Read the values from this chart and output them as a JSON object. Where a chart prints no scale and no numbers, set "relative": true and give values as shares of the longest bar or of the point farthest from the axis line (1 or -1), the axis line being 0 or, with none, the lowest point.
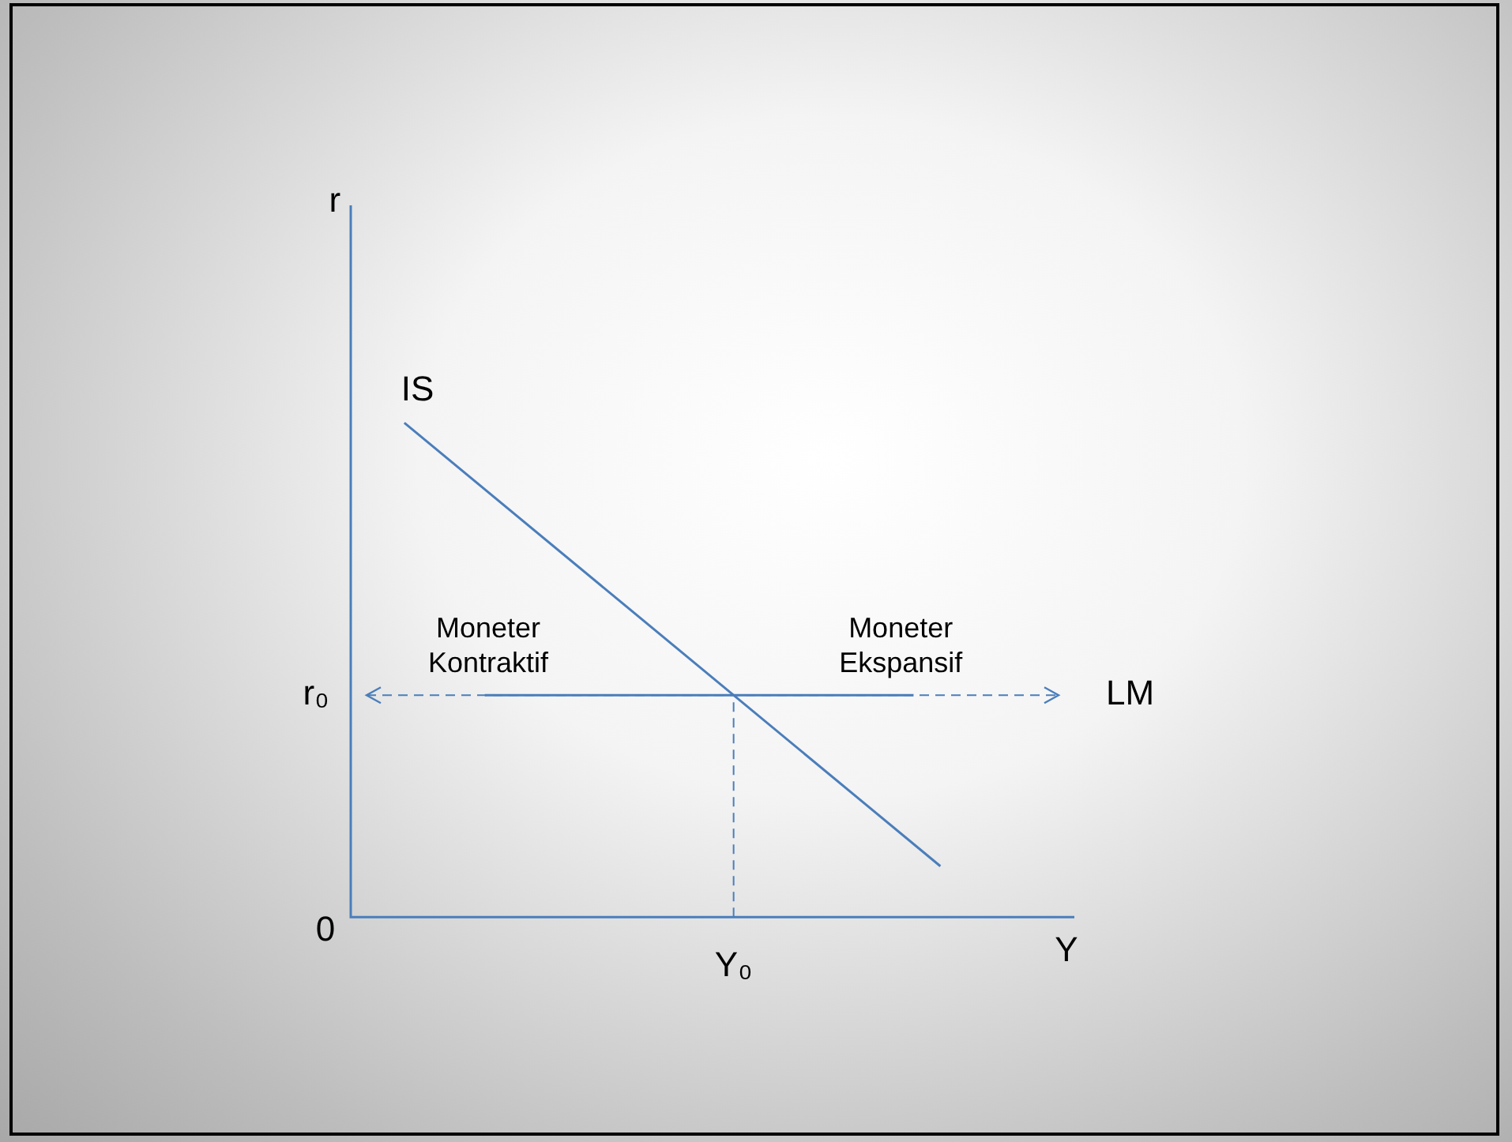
{
  "chart_data": {
    "type": "line",
    "relative": true,
    "xlabel": "Y",
    "categories": [
      null,
      null,
      null,
      null,
      null,
      null,
      null,
      null,
      null,
      null,
      null,
      null,
      null,
      null,
      null,
      null,
      null,
      null,
      null,
      null,
      null,
      null,
      null,
      null,
      null,
      null,
      null,
      null
    ],
    "series": [
      {
        "name": "IS",
        "color": "#4a7ebb",
        "values": [
          null,
          null,
          1,
          null,
          null,
          null,
          null,
          null,
          null,
          null,
          null,
          null,
          null,
          null,
          null,
          null,
          null,
          null,
          null,
          null,
          null,
          null,
          0.103,
          null,
          null,
          null,
          null,
          null
        ]
      },
      {
        "name": "LM",
        "color": "#4a7ebb",
        "values": [
          null,
          null,
          null,
          null,
          null,
          0.449,
          null,
          null,
          null,
          null,
          null,
          null,
          null,
          null,
          null,
          null,
          null,
          null,
          null,
          null,
          null,
          0.449,
          null,
          null,
          null,
          null,
          null,
          null
        ]
      }
    ],
    "ref_lines": [
      {
        "axis": "y",
        "value": 0.449,
        "label": "r₀",
        "color": "#4a7ebb",
        "line_style": "dashed"
      }
    ],
    "annotations": [
      "r",
      "0",
      "Y₀",
      "Moneter\nKontraktif",
      "Moneter\nEkspansif"
    ]
  }
}
